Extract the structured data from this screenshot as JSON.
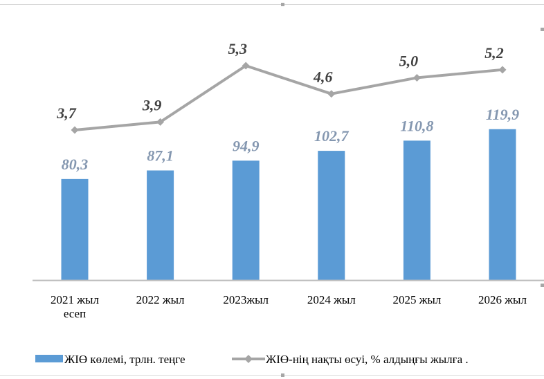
{
  "chart_data": {
    "type": "bar",
    "categories": [
      [
        "2021 жыл",
        "есеп"
      ],
      [
        "2022 жыл"
      ],
      [
        "2023жыл"
      ],
      [
        "2024 жыл"
      ],
      [
        "2025 жыл"
      ],
      [
        "2026 жыл"
      ]
    ],
    "series": [
      {
        "name": "ЖІӨ көлемі, трлн. теңге",
        "kind": "bar",
        "color": "#5b9bd5",
        "label_color": "#8497b0",
        "values": [
          80.3,
          87.1,
          94.9,
          102.7,
          110.8,
          119.9
        ],
        "labels": [
          "80,3",
          "87,1",
          "94,9",
          "102,7",
          "110,8",
          "119,9"
        ]
      },
      {
        "name": "ЖІӨ-нің нақты өсуі,  % алдыңғы жылға  .",
        "kind": "line",
        "color": "#a5a5a5",
        "label_color": "#404040",
        "values": [
          3.7,
          3.9,
          5.3,
          4.6,
          5.0,
          5.2
        ],
        "labels": [
          "3,7",
          "3,9",
          "5,3",
          "4,6",
          "5,0",
          "5,2"
        ]
      }
    ],
    "ylim_bar": [
      0,
      140
    ],
    "ylim_line": [
      0,
      6
    ],
    "grid": false,
    "legend": "bottom"
  }
}
